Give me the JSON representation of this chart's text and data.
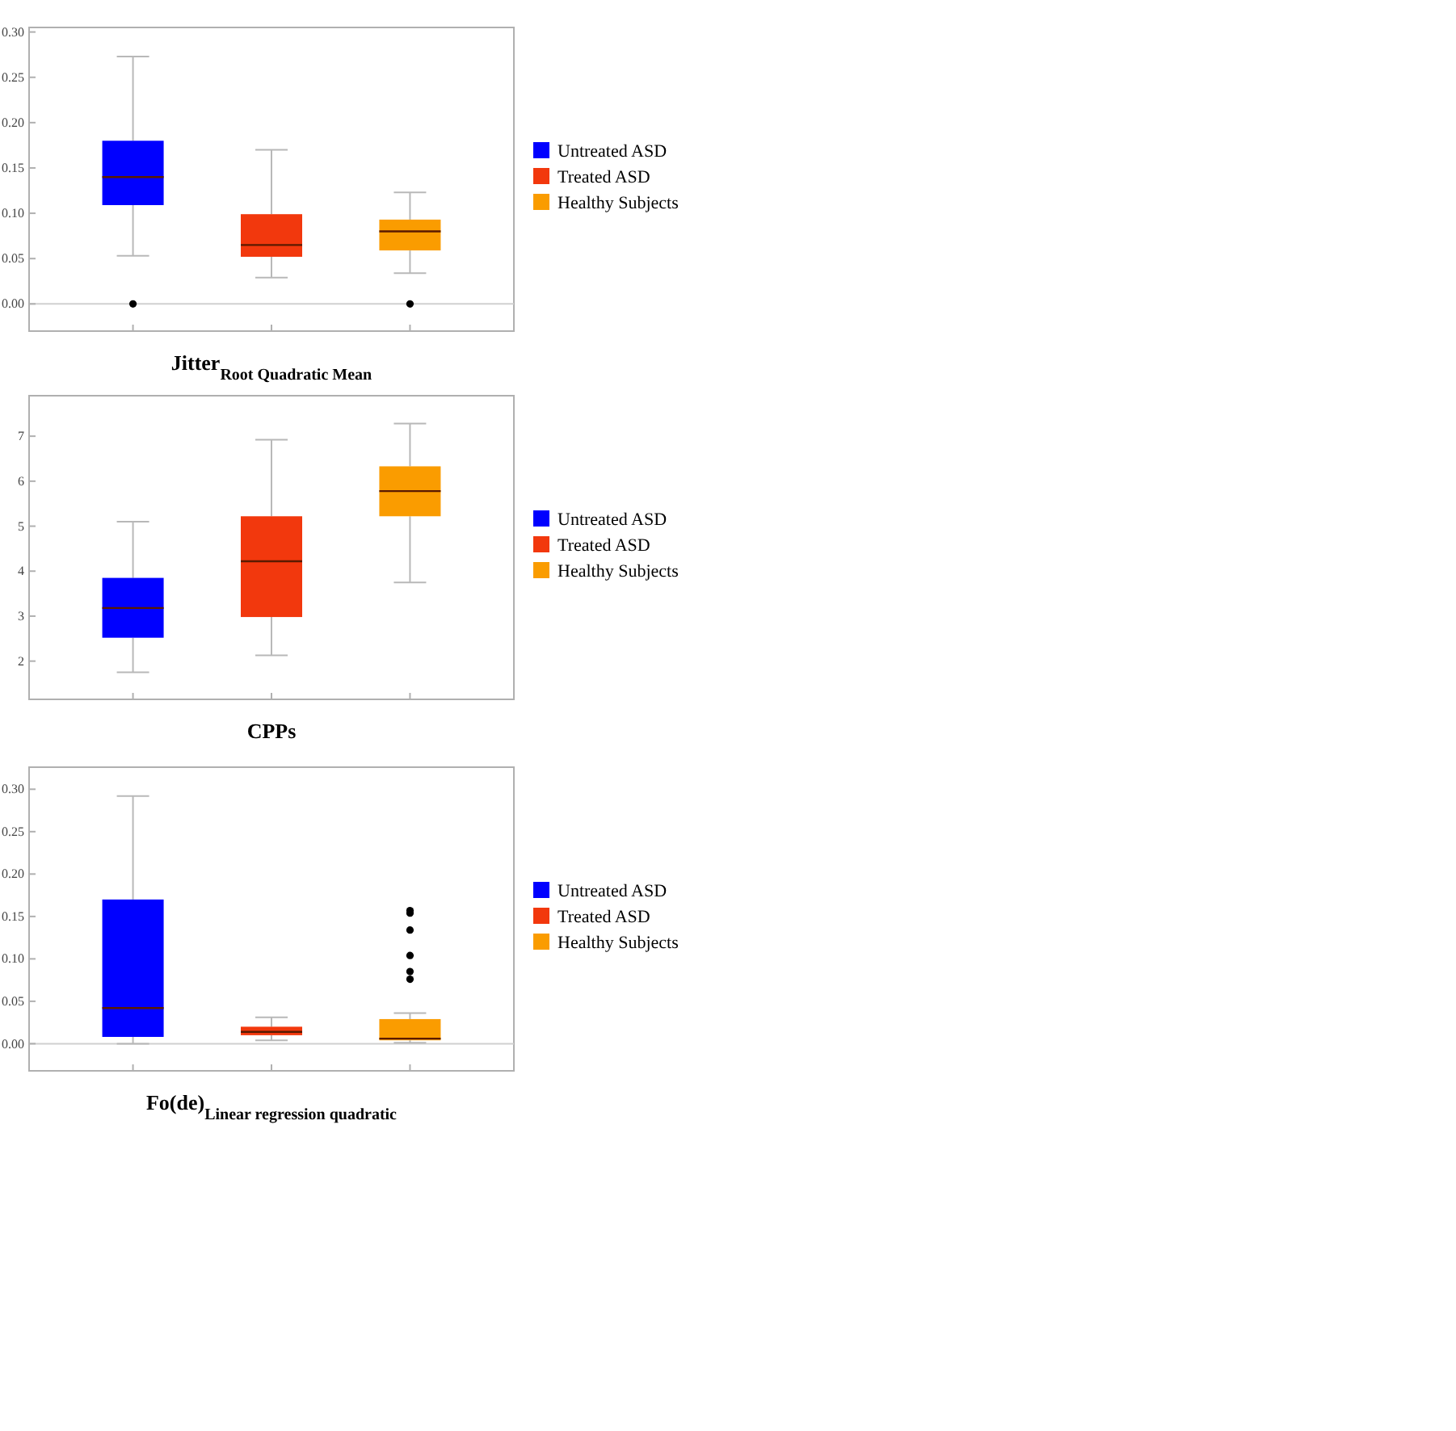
{
  "chart_data": [
    {
      "type": "box",
      "xlabel": "Jitter$_{Root Quadratic Mean}$",
      "categories": [
        null,
        null,
        null
      ],
      "ylim": [
        -0.03,
        0.305
      ],
      "yticks": [
        {
          "value": 0,
          "label": "0.00"
        },
        {
          "value": 0.05,
          "label": "0.05"
        },
        {
          "value": 0.1,
          "label": "0.10"
        },
        {
          "value": 0.15,
          "label": "0.15"
        },
        {
          "value": 0.2,
          "label": "0.20"
        },
        {
          "value": 0.25,
          "label": "0.25"
        },
        {
          "value": 0.3,
          "label": "0.30"
        }
      ],
      "legend": "right",
      "ref_lines": [
        {
          "axis": "y",
          "value": 0,
          "color": "#d0d0d0"
        }
      ],
      "series": [
        {
          "name": "Untreated ASD",
          "color": "#0000ff",
          "boxes": [
            {
              "low": 0.053,
              "q1": 0.109,
              "median": 0.14,
              "q3": 0.18,
              "high": 0.273,
              "outliers": [
                0
              ]
            },
            null,
            null
          ]
        },
        {
          "name": "Treated ASD",
          "color": "#f2380d",
          "boxes": [
            null,
            {
              "low": 0.029,
              "q1": 0.052,
              "median": 0.065,
              "q3": 0.099,
              "high": 0.17
            },
            null
          ]
        },
        {
          "name": "Healthy Subjects",
          "color": "#fa9c00",
          "boxes": [
            null,
            null,
            {
              "low": 0.034,
              "q1": 0.059,
              "median": 0.08,
              "q3": 0.093,
              "high": 0.123,
              "outliers": [
                0
              ]
            }
          ]
        }
      ]
    },
    {
      "type": "box",
      "xlabel": "CPPs",
      "categories": [
        null,
        null,
        null
      ],
      "ylim": [
        1.15,
        7.9
      ],
      "yticks": [
        2,
        3,
        4,
        5,
        6,
        7
      ],
      "legend": "right",
      "series": [
        {
          "name": "Untreated ASD",
          "color": "#0000ff",
          "boxes": [
            {
              "low": 1.75,
              "q1": 2.52,
              "median": 3.18,
              "q3": 3.85,
              "high": 5.1
            },
            null,
            null
          ]
        },
        {
          "name": "Treated ASD",
          "color": "#f2380d",
          "boxes": [
            null,
            {
              "low": 2.13,
              "q1": 2.98,
              "median": 4.22,
              "q3": 5.22,
              "high": 6.92
            },
            null
          ]
        },
        {
          "name": "Healthy Subjects",
          "color": "#fa9c00",
          "boxes": [
            null,
            null,
            {
              "low": 3.75,
              "q1": 5.22,
              "median": 5.78,
              "q3": 6.33,
              "high": 7.28
            }
          ]
        }
      ]
    },
    {
      "type": "box",
      "xlabel": "Fo(de)$_{Linear regression quadratic}$",
      "categories": [
        null,
        null,
        null
      ],
      "ylim": [
        -0.032,
        0.326
      ],
      "yticks": [
        {
          "value": 0,
          "label": "0.00"
        },
        {
          "value": 0.05,
          "label": "0.05"
        },
        {
          "value": 0.1,
          "label": "0.10"
        },
        {
          "value": 0.15,
          "label": "0.15"
        },
        {
          "value": 0.2,
          "label": "0.20"
        },
        {
          "value": 0.25,
          "label": "0.25"
        },
        {
          "value": 0.3,
          "label": "0.30"
        }
      ],
      "legend": "right",
      "ref_lines": [
        {
          "axis": "y",
          "value": 0,
          "color": "#d0d0d0"
        }
      ],
      "series": [
        {
          "name": "Untreated ASD",
          "color": "#0000ff",
          "boxes": [
            {
              "low": 0,
              "q1": 0.008,
              "median": 0.042,
              "q3": 0.17,
              "high": 0.292
            },
            null,
            null
          ]
        },
        {
          "name": "Treated ASD",
          "color": "#f2380d",
          "boxes": [
            null,
            {
              "low": 0.004,
              "q1": 0.01,
              "median": 0.014,
              "q3": 0.02,
              "high": 0.031
            },
            null
          ]
        },
        {
          "name": "Healthy Subjects",
          "color": "#fa9c00",
          "boxes": [
            null,
            null,
            {
              "low": 0.001,
              "q1": 0.004,
              "median": 0.006,
              "q3": 0.029,
              "high": 0.036,
              "outliers": [
                0.157,
                0.154,
                0.134,
                0.104,
                0.085,
                0.076
              ]
            }
          ]
        }
      ]
    }
  ]
}
